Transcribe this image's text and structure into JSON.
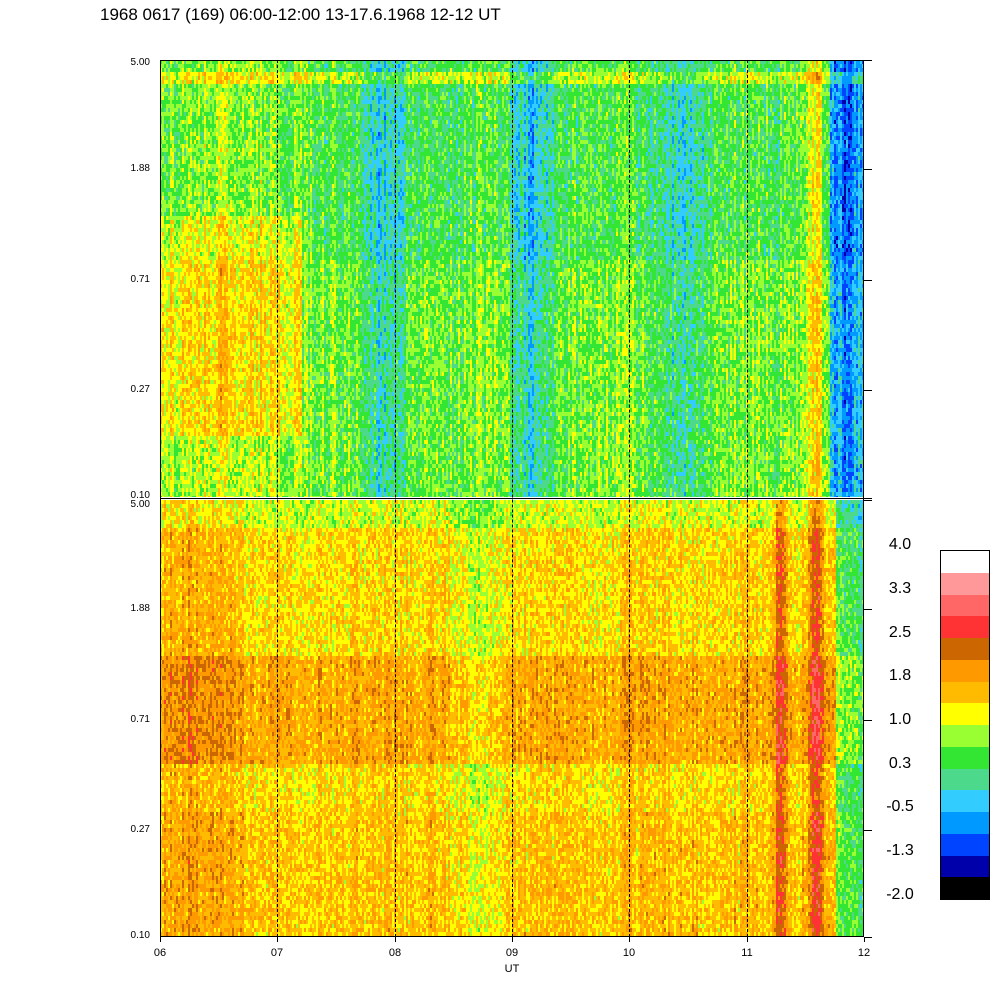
{
  "title": "1968 0617 (169) 06:00-12:00 13-17.6.1968  12-12 UT",
  "chart_data": [
    {
      "type": "heatmap",
      "panel": "upper",
      "x_range": [
        "06",
        "12"
      ],
      "y_tick_labels": [
        "5.00",
        "1.88",
        "0.71",
        "0.27",
        "0.10"
      ],
      "ylim": [
        0.1,
        5.0
      ],
      "y_scale": "log"
    },
    {
      "type": "heatmap",
      "panel": "lower",
      "x_range": [
        "06",
        "12"
      ],
      "y_tick_labels": [
        "5.00",
        "1.88",
        "0.71",
        "0.27",
        "0.10"
      ],
      "ylim": [
        0.1,
        5.0
      ],
      "y_scale": "log"
    }
  ],
  "x_axis": {
    "title": "UT",
    "tick_labels": [
      "06",
      "07",
      "08",
      "09",
      "10",
      "11",
      "12"
    ]
  },
  "colorbar": {
    "labels": [
      "4.0",
      "3.3",
      "2.5",
      "1.8",
      "1.0",
      "0.3",
      "-0.5",
      "-1.3",
      "-2.0"
    ],
    "colors": [
      "#ffffff",
      "#ff9999",
      "#ff6666",
      "#ff3333",
      "#cc6600",
      "#ff9900",
      "#ffbb00",
      "#ffff00",
      "#99ff33",
      "#33e633",
      "#4dd98c",
      "#33ccff",
      "#0099ff",
      "#0044ff",
      "#0000aa",
      "#000000"
    ]
  }
}
